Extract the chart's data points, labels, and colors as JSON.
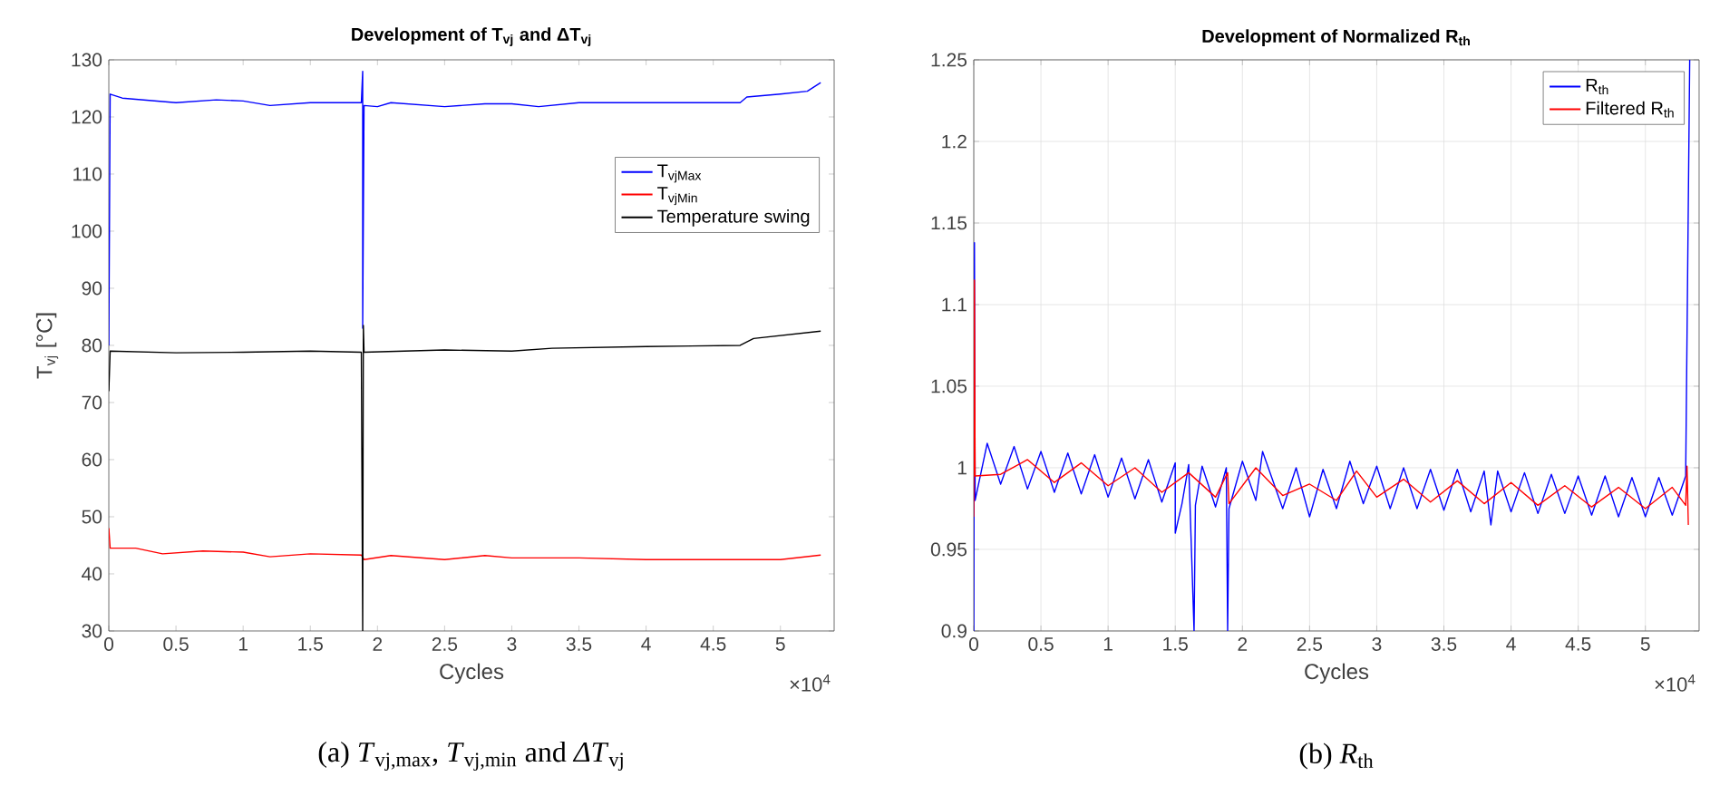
{
  "chart_data": [
    {
      "type": "line",
      "title": "Development of T$_{vj}$ and ΔT$_{vj}$",
      "xlabel": "Cycles",
      "ylabel": "T$_{vj}$ [°C]",
      "annotations": [
        "×10$^{4}$",
        "(a) *T*$_{vj,max}$, *T*$_{vj,min}$ and *ΔT*$_{vj}$"
      ],
      "xlim": [
        0,
        5.4
      ],
      "ylim": [
        30,
        130
      ],
      "xticks": [
        0,
        0.5,
        1,
        1.5,
        2,
        2.5,
        3,
        3.5,
        4,
        4.5,
        5
      ],
      "yticks": [
        30,
        40,
        50,
        60,
        70,
        80,
        90,
        100,
        110,
        120,
        130
      ],
      "grid": false,
      "legend": "right",
      "series": [
        {
          "name": "T$_{vjMax}$",
          "color": "#0000ff",
          "x": [
            0,
            0.01,
            0.1,
            0.5,
            0.8,
            1,
            1.2,
            1.5,
            1.88,
            1.89,
            1.89,
            1.9,
            2,
            2.1,
            2.5,
            2.8,
            3,
            3.2,
            3.5,
            4,
            4.7,
            4.75,
            5,
            5.2,
            5.3
          ],
          "values": [
            80,
            124,
            123.3,
            122.5,
            123,
            122.8,
            122,
            122.5,
            122.5,
            128,
            83,
            122,
            121.8,
            122.5,
            121.8,
            122.3,
            122.3,
            121.8,
            122.5,
            122.5,
            122.5,
            123.5,
            124,
            124.5,
            126
          ]
        },
        {
          "name": "T$_{vjMin}$",
          "color": "#ff0000",
          "x": [
            0,
            0.01,
            0.2,
            0.4,
            0.7,
            1,
            1.2,
            1.5,
            1.88,
            1.9,
            2.1,
            2.5,
            2.8,
            3,
            3.5,
            4,
            4.5,
            5,
            5.3
          ],
          "values": [
            48,
            44.5,
            44.5,
            43.5,
            44,
            43.8,
            43,
            43.5,
            43.3,
            42.5,
            43.2,
            42.5,
            43.2,
            42.8,
            42.8,
            42.5,
            42.5,
            42.5,
            43.3
          ]
        },
        {
          "name": "Temperature swing",
          "color": "#000000",
          "x": [
            0,
            0.01,
            0.5,
            1,
            1.5,
            1.88,
            1.89,
            1.895,
            1.9,
            2.5,
            3,
            3.3,
            4,
            4.7,
            4.8,
            5.3
          ],
          "values": [
            72,
            79,
            78.7,
            78.8,
            79,
            78.8,
            30,
            83.5,
            78.8,
            79.2,
            79,
            79.5,
            79.8,
            80,
            81.2,
            82.5
          ]
        }
      ]
    },
    {
      "type": "line",
      "title": "Development of Normalized R$_{th}$",
      "xlabel": "Cycles",
      "annotations": [
        "×10$^{4}$",
        "(b) *R*$_{th}$"
      ],
      "xlim": [
        0,
        5.4
      ],
      "ylim": [
        0.9,
        1.25
      ],
      "xticks": [
        0,
        0.5,
        1,
        1.5,
        2,
        2.5,
        3,
        3.5,
        4,
        4.5,
        5
      ],
      "yticks": [
        0.9,
        0.95,
        1,
        1.05,
        1.1,
        1.15,
        1.2,
        1.25
      ],
      "grid": true,
      "legend": "top right",
      "series": [
        {
          "name": "R$_{th}$",
          "color": "#0000ff",
          "x": [
            0,
            0.005,
            0.01,
            0.1,
            0.2,
            0.3,
            0.4,
            0.5,
            0.6,
            0.7,
            0.8,
            0.9,
            1.0,
            1.1,
            1.2,
            1.3,
            1.4,
            1.5,
            1.5,
            1.55,
            1.6,
            1.64,
            1.65,
            1.7,
            1.8,
            1.88,
            1.89,
            1.9,
            2.0,
            2.1,
            2.15,
            2.3,
            2.4,
            2.5,
            2.6,
            2.7,
            2.8,
            2.9,
            3.0,
            3.1,
            3.2,
            3.3,
            3.4,
            3.5,
            3.6,
            3.7,
            3.8,
            3.85,
            3.9,
            4.0,
            4.1,
            4.2,
            4.3,
            4.4,
            4.5,
            4.6,
            4.7,
            4.8,
            4.9,
            5.0,
            5.1,
            5.2,
            5.3,
            5.33
          ],
          "values": [
            0.9,
            1.138,
            0.98,
            1.015,
            0.99,
            1.013,
            0.987,
            1.01,
            0.985,
            1.009,
            0.984,
            1.008,
            0.982,
            1.006,
            0.981,
            1.005,
            0.979,
            1.003,
            0.96,
            0.978,
            1.002,
            0.9,
            0.977,
            1.001,
            0.976,
            1.0,
            0.9,
            0.975,
            1.004,
            0.98,
            1.01,
            0.975,
            1.0,
            0.97,
            0.999,
            0.975,
            1.004,
            0.978,
            1.001,
            0.975,
            1.0,
            0.975,
            0.999,
            0.974,
            0.999,
            0.973,
            0.998,
            0.965,
            0.998,
            0.973,
            0.997,
            0.972,
            0.996,
            0.972,
            0.995,
            0.971,
            0.995,
            0.97,
            0.994,
            0.97,
            0.994,
            0.971,
            0.995,
            1.25
          ]
        },
        {
          "name": "Filtered R$_{th}$",
          "color": "#ff0000",
          "x": [
            0,
            0.005,
            0.01,
            0.2,
            0.4,
            0.6,
            0.8,
            1.0,
            1.2,
            1.4,
            1.6,
            1.8,
            1.89,
            1.9,
            2.1,
            2.3,
            2.5,
            2.7,
            2.85,
            3.0,
            3.2,
            3.4,
            3.6,
            3.8,
            4.0,
            4.2,
            4.4,
            4.6,
            4.8,
            5.0,
            5.2,
            5.3,
            5.31,
            5.32
          ],
          "values": [
            0.97,
            1.115,
            0.995,
            0.996,
            1.005,
            0.991,
            1.003,
            0.989,
            1.0,
            0.985,
            0.997,
            0.982,
            0.997,
            0.978,
            1.0,
            0.983,
            0.99,
            0.98,
            0.998,
            0.982,
            0.993,
            0.979,
            0.992,
            0.978,
            0.991,
            0.977,
            0.989,
            0.976,
            0.988,
            0.975,
            0.988,
            0.977,
            1.001,
            0.965
          ]
        }
      ]
    }
  ]
}
